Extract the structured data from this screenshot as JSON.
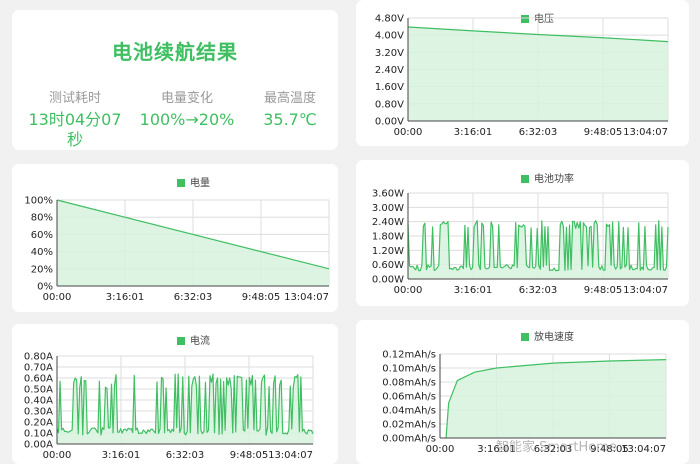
{
  "summary": {
    "title": "电池续航结果",
    "stats": [
      {
        "label": "测试耗时",
        "value": "13时04分07秒"
      },
      {
        "label": "电量变化",
        "value": "100%→20%"
      },
      {
        "label": "最高温度",
        "value": "35.7℃"
      }
    ]
  },
  "colors": {
    "line": "#3fbf62",
    "fill": "#d7f2de",
    "grid": "#dddddd"
  },
  "watermark": "智能家 SmartHome",
  "chart_data": [
    {
      "id": "battery",
      "type": "area",
      "legend": "电量",
      "x_ticks": [
        "00:00",
        "3:16:01",
        "6:32:03",
        "9:48:05",
        "13:04:07"
      ],
      "y_ticks": [
        "0%",
        "20%",
        "40%",
        "60%",
        "80%",
        "100%"
      ],
      "ylim": [
        0,
        100
      ],
      "series": [
        {
          "name": "电量",
          "x_hours": [
            0,
            13.07
          ],
          "values": [
            100,
            20
          ]
        }
      ]
    },
    {
      "id": "current",
      "type": "area",
      "legend": "电流",
      "x_ticks": [
        "00:00",
        "3:16:01",
        "6:32:03",
        "9:48:05",
        "13:04:07"
      ],
      "y_ticks": [
        "0.00A",
        "0.10A",
        "0.20A",
        "0.30A",
        "0.40A",
        "0.50A",
        "0.60A",
        "0.70A",
        "0.80A"
      ],
      "ylim": [
        0,
        0.8
      ],
      "series": [
        {
          "name": "电流",
          "pattern": "spiky",
          "base_range": [
            0.08,
            0.15
          ],
          "peak_range": [
            0.5,
            0.64
          ]
        }
      ]
    },
    {
      "id": "voltage",
      "type": "area",
      "legend": "电压",
      "x_ticks": [
        "00:00",
        "3:16:01",
        "6:32:03",
        "9:48:05",
        "13:04:07"
      ],
      "y_ticks": [
        "0.00V",
        "0.80V",
        "1.60V",
        "2.40V",
        "3.20V",
        "4.00V",
        "4.80V"
      ],
      "ylim": [
        0,
        4.8
      ],
      "series": [
        {
          "name": "电压",
          "x_hours": [
            0,
            3.27,
            6.53,
            9.8,
            13.07
          ],
          "values": [
            4.38,
            4.2,
            4.03,
            3.88,
            3.7
          ]
        }
      ]
    },
    {
      "id": "power",
      "type": "area",
      "legend": "电池功率",
      "x_ticks": [
        "00:00",
        "3:16:01",
        "6:32:03",
        "9:48:05",
        "13:04:07"
      ],
      "y_ticks": [
        "0.00W",
        "0.60W",
        "1.20W",
        "1.80W",
        "2.40W",
        "3.00W",
        "3.60W"
      ],
      "ylim": [
        0,
        3.6
      ],
      "series": [
        {
          "name": "电池功率",
          "pattern": "spiky",
          "base_range": [
            0.35,
            0.6
          ],
          "peak_range": [
            2.1,
            2.45
          ]
        }
      ]
    },
    {
      "id": "rate",
      "type": "area",
      "legend": "放电速度",
      "x_ticks": [
        "00:00",
        "3:16:01",
        "6:32:03",
        "9:48:05",
        "13:04:07"
      ],
      "y_ticks": [
        "0.00mAh/s",
        "0.02mAh/s",
        "0.04mAh/s",
        "0.06mAh/s",
        "0.08mAh/s",
        "0.10mAh/s",
        "0.12mAh/s"
      ],
      "ylim": [
        0,
        0.12
      ],
      "series": [
        {
          "name": "放电速度",
          "x_hours": [
            0.35,
            0.5,
            1,
            2,
            3.27,
            6.53,
            9.8,
            13.07
          ],
          "values": [
            0,
            0.05,
            0.082,
            0.094,
            0.1,
            0.107,
            0.11,
            0.112
          ]
        }
      ]
    }
  ]
}
